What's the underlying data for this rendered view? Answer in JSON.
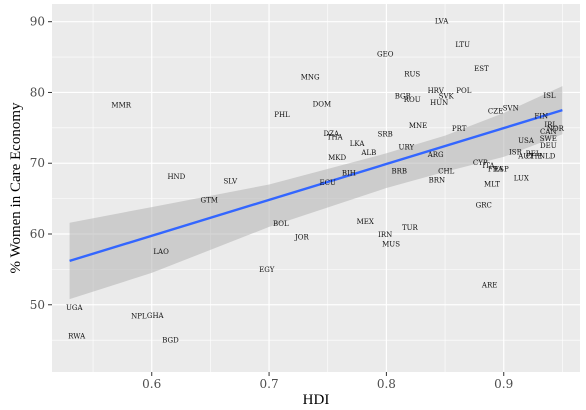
{
  "chart_data": {
    "type": "scatter",
    "title": "",
    "xlabel": "HDI",
    "ylabel": "% Women in Care Economy",
    "xlim": [
      0.515,
      0.965
    ],
    "ylim": [
      40.5,
      92.5
    ],
    "x_ticks": [
      0.6,
      0.7,
      0.8,
      0.9
    ],
    "x_tick_labels": [
      "0.6",
      "0.7",
      "0.8",
      "0.9"
    ],
    "y_ticks": [
      50,
      60,
      70,
      80,
      90
    ],
    "y_tick_labels": [
      "50",
      "60",
      "70",
      "80",
      "90"
    ],
    "grid": true,
    "background": "#ebebeb",
    "grid_color": "#ffffff",
    "trend_color": "#3366ff",
    "band_color": "#b2b2b2",
    "trend": {
      "x": [
        0.53,
        0.95
      ],
      "y": [
        56.2,
        77.5
      ]
    },
    "band_upper": [
      [
        0.53,
        61.6
      ],
      [
        0.6,
        63.8
      ],
      [
        0.7,
        67.0
      ],
      [
        0.8,
        71.4
      ],
      [
        0.85,
        73.9
      ],
      [
        0.9,
        77.1
      ],
      [
        0.95,
        80.9
      ]
    ],
    "band_lower": [
      [
        0.53,
        50.8
      ],
      [
        0.6,
        54.5
      ],
      [
        0.7,
        61.0
      ],
      [
        0.8,
        66.5
      ],
      [
        0.85,
        68.8
      ],
      [
        0.9,
        70.9
      ],
      [
        0.95,
        74.1
      ]
    ],
    "points": [
      {
        "label": "LVA",
        "x": 0.847,
        "y": 90.1
      },
      {
        "label": "LTU",
        "x": 0.865,
        "y": 86.8
      },
      {
        "label": "GEO",
        "x": 0.799,
        "y": 85.4
      },
      {
        "label": "EST",
        "x": 0.881,
        "y": 83.4
      },
      {
        "label": "RUS",
        "x": 0.822,
        "y": 82.6
      },
      {
        "label": "MNG",
        "x": 0.735,
        "y": 82.2
      },
      {
        "label": "POL",
        "x": 0.866,
        "y": 80.3
      },
      {
        "label": "HRV",
        "x": 0.842,
        "y": 80.3
      },
      {
        "label": "SVK",
        "x": 0.851,
        "y": 79.5
      },
      {
        "label": "BGR",
        "x": 0.814,
        "y": 79.5
      },
      {
        "label": "ROU",
        "x": 0.822,
        "y": 79.0
      },
      {
        "label": "HUN",
        "x": 0.845,
        "y": 78.6
      },
      {
        "label": "DOM",
        "x": 0.745,
        "y": 78.4
      },
      {
        "label": "MMR",
        "x": 0.574,
        "y": 78.2
      },
      {
        "label": "ISL",
        "x": 0.939,
        "y": 79.6
      },
      {
        "label": "SVN",
        "x": 0.906,
        "y": 77.8
      },
      {
        "label": "CZE",
        "x": 0.893,
        "y": 77.4
      },
      {
        "label": "PHL",
        "x": 0.711,
        "y": 76.9
      },
      {
        "label": "FIN",
        "x": 0.932,
        "y": 76.7
      },
      {
        "label": "MNE",
        "x": 0.827,
        "y": 75.3
      },
      {
        "label": "IRL",
        "x": 0.94,
        "y": 75.5
      },
      {
        "label": "NOR",
        "x": 0.944,
        "y": 74.9
      },
      {
        "label": "CAN",
        "x": 0.938,
        "y": 74.5
      },
      {
        "label": "PRT",
        "x": 0.862,
        "y": 74.9
      },
      {
        "label": "DZA",
        "x": 0.753,
        "y": 74.2
      },
      {
        "label": "SRB",
        "x": 0.799,
        "y": 74.1
      },
      {
        "label": "THA",
        "x": 0.756,
        "y": 73.7
      },
      {
        "label": "LKA",
        "x": 0.775,
        "y": 72.8
      },
      {
        "label": "USA",
        "x": 0.919,
        "y": 73.2
      },
      {
        "label": "SWE",
        "x": 0.938,
        "y": 73.5
      },
      {
        "label": "URY",
        "x": 0.817,
        "y": 72.3
      },
      {
        "label": "DEU",
        "x": 0.938,
        "y": 72.5
      },
      {
        "label": "ISR",
        "x": 0.91,
        "y": 71.6
      },
      {
        "label": "BEL",
        "x": 0.925,
        "y": 71.4
      },
      {
        "label": "AUT",
        "x": 0.919,
        "y": 71.0
      },
      {
        "label": "CHE",
        "x": 0.926,
        "y": 71.0
      },
      {
        "label": "NLD",
        "x": 0.937,
        "y": 71.0
      },
      {
        "label": "ALB",
        "x": 0.785,
        "y": 71.5
      },
      {
        "label": "ARG",
        "x": 0.842,
        "y": 71.2
      },
      {
        "label": "MKD",
        "x": 0.758,
        "y": 70.8
      },
      {
        "label": "CYP",
        "x": 0.88,
        "y": 70.1
      },
      {
        "label": "ITA",
        "x": 0.887,
        "y": 69.7
      },
      {
        "label": "FRA",
        "x": 0.893,
        "y": 69.2
      },
      {
        "label": "ESP",
        "x": 0.898,
        "y": 69.2
      },
      {
        "label": "CHL",
        "x": 0.851,
        "y": 68.9
      },
      {
        "label": "BIH",
        "x": 0.768,
        "y": 68.6
      },
      {
        "label": "BRB",
        "x": 0.811,
        "y": 68.9
      },
      {
        "label": "HND",
        "x": 0.621,
        "y": 68.1
      },
      {
        "label": "BRN",
        "x": 0.843,
        "y": 67.6
      },
      {
        "label": "LUX",
        "x": 0.915,
        "y": 67.9
      },
      {
        "label": "SLV",
        "x": 0.667,
        "y": 67.5
      },
      {
        "label": "ECU",
        "x": 0.75,
        "y": 67.3
      },
      {
        "label": "MLT",
        "x": 0.89,
        "y": 67.1
      },
      {
        "label": "GTM",
        "x": 0.649,
        "y": 64.8
      },
      {
        "label": "GRC",
        "x": 0.883,
        "y": 64.1
      },
      {
        "label": "BOL",
        "x": 0.71,
        "y": 61.5
      },
      {
        "label": "MEX",
        "x": 0.782,
        "y": 61.8
      },
      {
        "label": "TUR",
        "x": 0.82,
        "y": 60.9
      },
      {
        "label": "IRN",
        "x": 0.799,
        "y": 59.9
      },
      {
        "label": "JOR",
        "x": 0.728,
        "y": 59.6
      },
      {
        "label": "MUS",
        "x": 0.804,
        "y": 58.6
      },
      {
        "label": "LAO",
        "x": 0.608,
        "y": 57.5
      },
      {
        "label": "EGY",
        "x": 0.698,
        "y": 55.0
      },
      {
        "label": "ARE",
        "x": 0.888,
        "y": 52.8
      },
      {
        "label": "UGA",
        "x": 0.534,
        "y": 49.6
      },
      {
        "label": "NPL",
        "x": 0.589,
        "y": 48.4
      },
      {
        "label": "GHA",
        "x": 0.603,
        "y": 48.5
      },
      {
        "label": "RWA",
        "x": 0.536,
        "y": 45.6
      },
      {
        "label": "BGD",
        "x": 0.616,
        "y": 45.0
      }
    ]
  }
}
